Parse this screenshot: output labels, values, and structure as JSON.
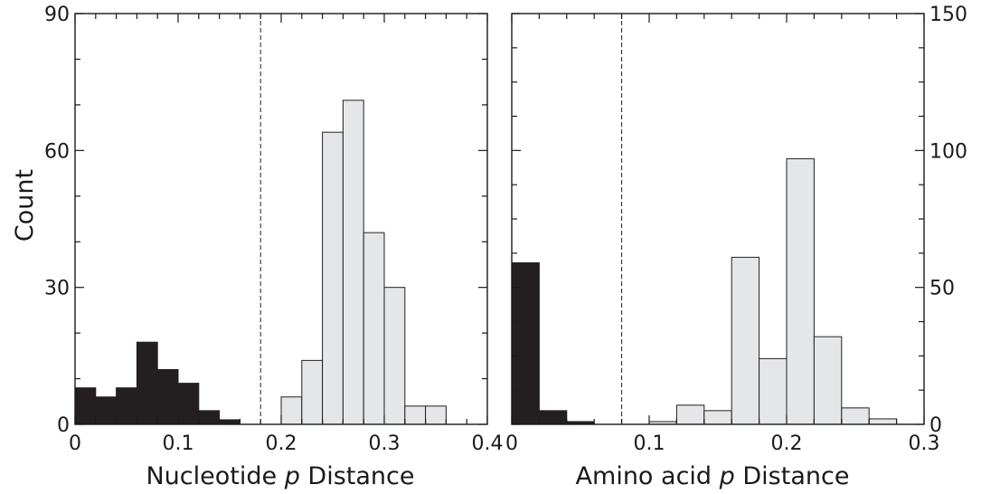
{
  "chart_data": [
    {
      "type": "bar",
      "panel": "left",
      "xlabel": "Nucleotide p Distance",
      "xlabel_parts": {
        "prefix": "Nucleotide ",
        "italic": "p",
        "suffix": " Distance"
      },
      "ylabel": "Count",
      "xlim": [
        0,
        0.4
      ],
      "ylim": [
        0,
        90
      ],
      "xticks": [
        "0",
        "0.1",
        "0.2",
        "0.3",
        "0.4"
      ],
      "xtick_values": [
        0,
        0.1,
        0.2,
        0.3,
        0.4
      ],
      "yticks": [
        "0",
        "30",
        "60",
        "90"
      ],
      "ytick_values": [
        0,
        30,
        60,
        90
      ],
      "cutoff_x": 0.18,
      "bin_width": 0.02,
      "series": [
        {
          "color": "#231f20",
          "bins": [
            [
              0,
              8
            ],
            [
              0.02,
              6
            ],
            [
              0.04,
              8
            ],
            [
              0.06,
              18
            ],
            [
              0.08,
              12
            ],
            [
              0.1,
              9
            ],
            [
              0.12,
              3
            ],
            [
              0.14,
              1
            ]
          ]
        },
        {
          "color": "#e5e6e8",
          "bins": [
            [
              0.2,
              6
            ],
            [
              0.22,
              14
            ],
            [
              0.24,
              64
            ],
            [
              0.26,
              71
            ],
            [
              0.28,
              42
            ],
            [
              0.3,
              30
            ],
            [
              0.32,
              4
            ],
            [
              0.34,
              4
            ]
          ]
        }
      ]
    },
    {
      "type": "bar",
      "panel": "right",
      "xlabel": "Amino acid p Distance",
      "xlabel_parts": {
        "prefix": "Amino acid ",
        "italic": "p",
        "suffix": " Distance"
      },
      "ylabel": "",
      "xlim": [
        0,
        0.3
      ],
      "ylim": [
        0,
        150
      ],
      "xticks": [
        "0",
        "0.1",
        "0.2",
        "0.3"
      ],
      "xtick_values": [
        0,
        0.1,
        0.2,
        0.3
      ],
      "yticks": [
        "0",
        "50",
        "100",
        "150"
      ],
      "ytick_values": [
        0,
        50,
        100,
        150
      ],
      "cutoff_x": 0.08,
      "bin_width": 0.02,
      "series": [
        {
          "color": "#231f20",
          "bins": [
            [
              0,
              59
            ],
            [
              0.02,
              5
            ],
            [
              0.04,
              1
            ]
          ]
        },
        {
          "color": "#e5e6e8",
          "bins": [
            [
              0.1,
              1
            ],
            [
              0.12,
              7
            ],
            [
              0.14,
              5
            ],
            [
              0.16,
              61
            ],
            [
              0.18,
              24
            ],
            [
              0.2,
              97
            ],
            [
              0.22,
              32
            ],
            [
              0.24,
              6
            ],
            [
              0.26,
              2
            ]
          ]
        }
      ]
    }
  ]
}
